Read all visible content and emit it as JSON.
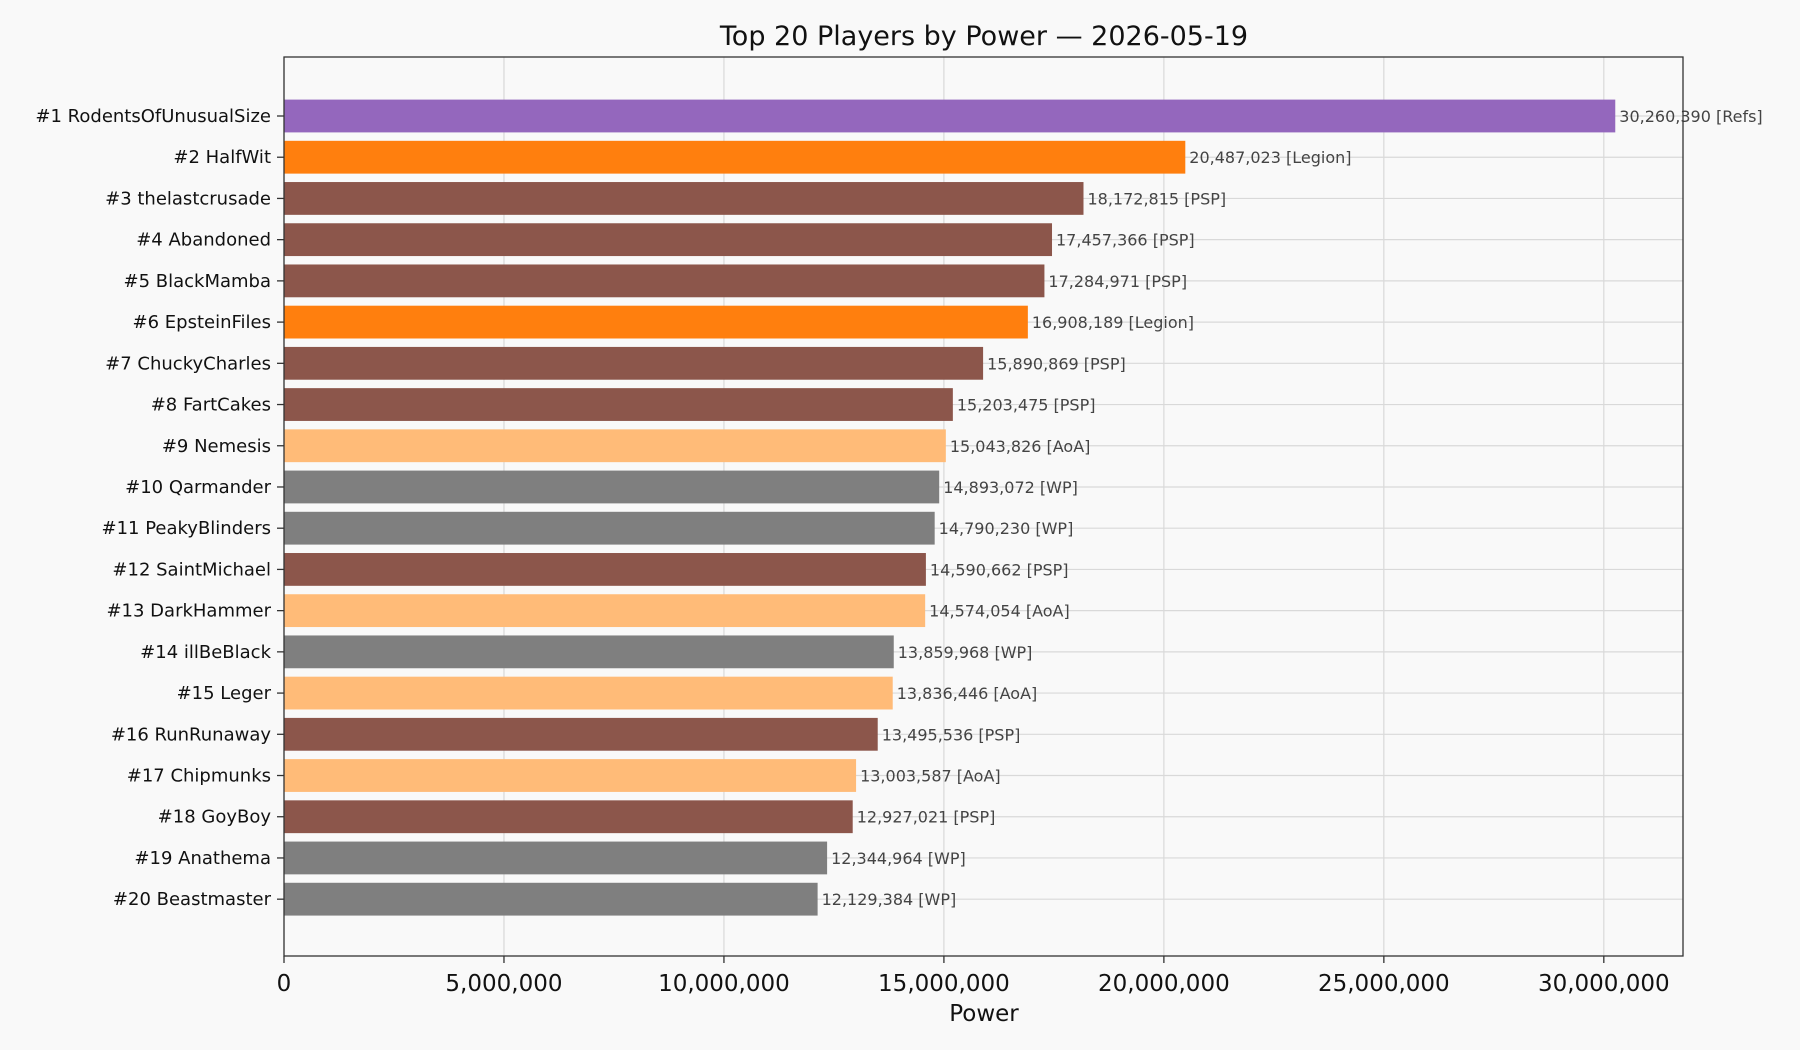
{
  "chart_data": {
    "type": "bar",
    "orientation": "horizontal",
    "title": "Top 20 Players by Power — 2026-05-19",
    "xlabel": "Power",
    "ylabel": "",
    "xlim": [
      0,
      31800000
    ],
    "xticks": [
      0,
      5000000,
      10000000,
      15000000,
      20000000,
      25000000,
      30000000
    ],
    "xtick_labels": [
      "0",
      "5,000,000",
      "10,000,000",
      "15,000,000",
      "20,000,000",
      "25,000,000",
      "30,000,000"
    ],
    "grid": true,
    "alliance_colors": {
      "Refs": "#9467bd",
      "Legion": "#ff7f0e",
      "PSP": "#8c564b",
      "AoA": "#ffbb78",
      "WP": "#7f7f7f"
    },
    "bars": [
      {
        "label": "#1 RodentsOfUnusualSize",
        "value": 30260390,
        "value_label": "30,260,390",
        "alliance": "Refs"
      },
      {
        "label": "#2 HalfWit",
        "value": 20487023,
        "value_label": "20,487,023",
        "alliance": "Legion"
      },
      {
        "label": "#3 thelastcrusade",
        "value": 18172815,
        "value_label": "18,172,815",
        "alliance": "PSP"
      },
      {
        "label": "#4 Abandoned",
        "value": 17457366,
        "value_label": "17,457,366",
        "alliance": "PSP"
      },
      {
        "label": "#5 BlackMamba",
        "value": 17284971,
        "value_label": "17,284,971",
        "alliance": "PSP"
      },
      {
        "label": "#6 EpsteinFiles",
        "value": 16908189,
        "value_label": "16,908,189",
        "alliance": "Legion"
      },
      {
        "label": "#7 ChuckyCharles",
        "value": 15890869,
        "value_label": "15,890,869",
        "alliance": "PSP"
      },
      {
        "label": "#8 FartCakes",
        "value": 15203475,
        "value_label": "15,203,475",
        "alliance": "PSP"
      },
      {
        "label": "#9 Nemesis",
        "value": 15043826,
        "value_label": "15,043,826",
        "alliance": "AoA"
      },
      {
        "label": "#10 Qarmander",
        "value": 14893072,
        "value_label": "14,893,072",
        "alliance": "WP"
      },
      {
        "label": "#11 PeakyBlinders",
        "value": 14790230,
        "value_label": "14,790,230",
        "alliance": "WP"
      },
      {
        "label": "#12 SaintMichael",
        "value": 14590662,
        "value_label": "14,590,662",
        "alliance": "PSP"
      },
      {
        "label": "#13 DarkHammer",
        "value": 14574054,
        "value_label": "14,574,054",
        "alliance": "AoA"
      },
      {
        "label": "#14 illBeBlack",
        "value": 13859968,
        "value_label": "13,859,968",
        "alliance": "WP"
      },
      {
        "label": "#15 Leger",
        "value": 13836446,
        "value_label": "13,836,446",
        "alliance": "AoA"
      },
      {
        "label": "#16 RunRunaway",
        "value": 13495536,
        "value_label": "13,495,536",
        "alliance": "PSP"
      },
      {
        "label": "#17 Chipmunks",
        "value": 13003587,
        "value_label": "13,003,587",
        "alliance": "AoA"
      },
      {
        "label": "#18 GoyBoy",
        "value": 12927021,
        "value_label": "12,927,021",
        "alliance": "PSP"
      },
      {
        "label": "#19 Anathema",
        "value": 12344964,
        "value_label": "12,344,964",
        "alliance": "WP"
      },
      {
        "label": "#20 Beastmaster",
        "value": 12129384,
        "value_label": "12,129,384",
        "alliance": "WP"
      }
    ]
  }
}
